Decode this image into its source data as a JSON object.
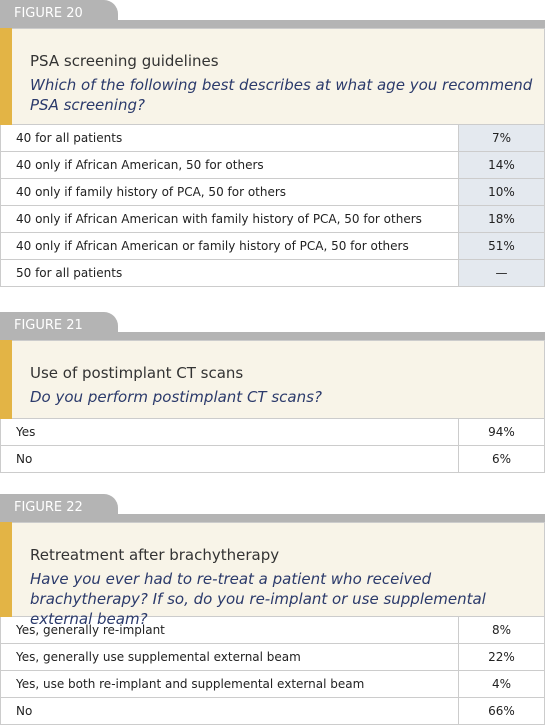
{
  "figures": [
    {
      "label": "FIGURE 20",
      "title": "PSA screening guidelines",
      "question": "Which of the following best describes at what age you recommend PSA screening?",
      "rows": [
        [
          "40 for all patients",
          "7%"
        ],
        [
          "40 only if African American, 50 for others",
          "14%"
        ],
        [
          "40 only if family history of PCA, 50 for others",
          "10%"
        ],
        [
          "40 only if African American with family history of PCA, 50 for others",
          "18%"
        ],
        [
          "40 only if African American or family history of PCA, 50 for others",
          "51%"
        ],
        [
          "50 for all patients",
          "—"
        ]
      ]
    },
    {
      "label": "FIGURE 21",
      "title": "Use of postimplant CT scans",
      "question": "Do you perform postimplant CT scans?",
      "rows": [
        [
          "Yes",
          "94%"
        ],
        [
          "No",
          "6%"
        ]
      ]
    },
    {
      "label": "FIGURE 22",
      "title": "Retreatment after brachytherapy",
      "question": "Have you ever had to re-treat a patient who received brachytherapy? If so, do you re-implant or use supplemental external beam?",
      "rows": [
        [
          "Yes, generally re-implant",
          "8%"
        ],
        [
          "Yes, generally use supplemental external beam",
          "22%"
        ],
        [
          "Yes, use both re-implant and supplemental external beam",
          "4%"
        ],
        [
          "No",
          "66%"
        ]
      ]
    }
  ]
}
